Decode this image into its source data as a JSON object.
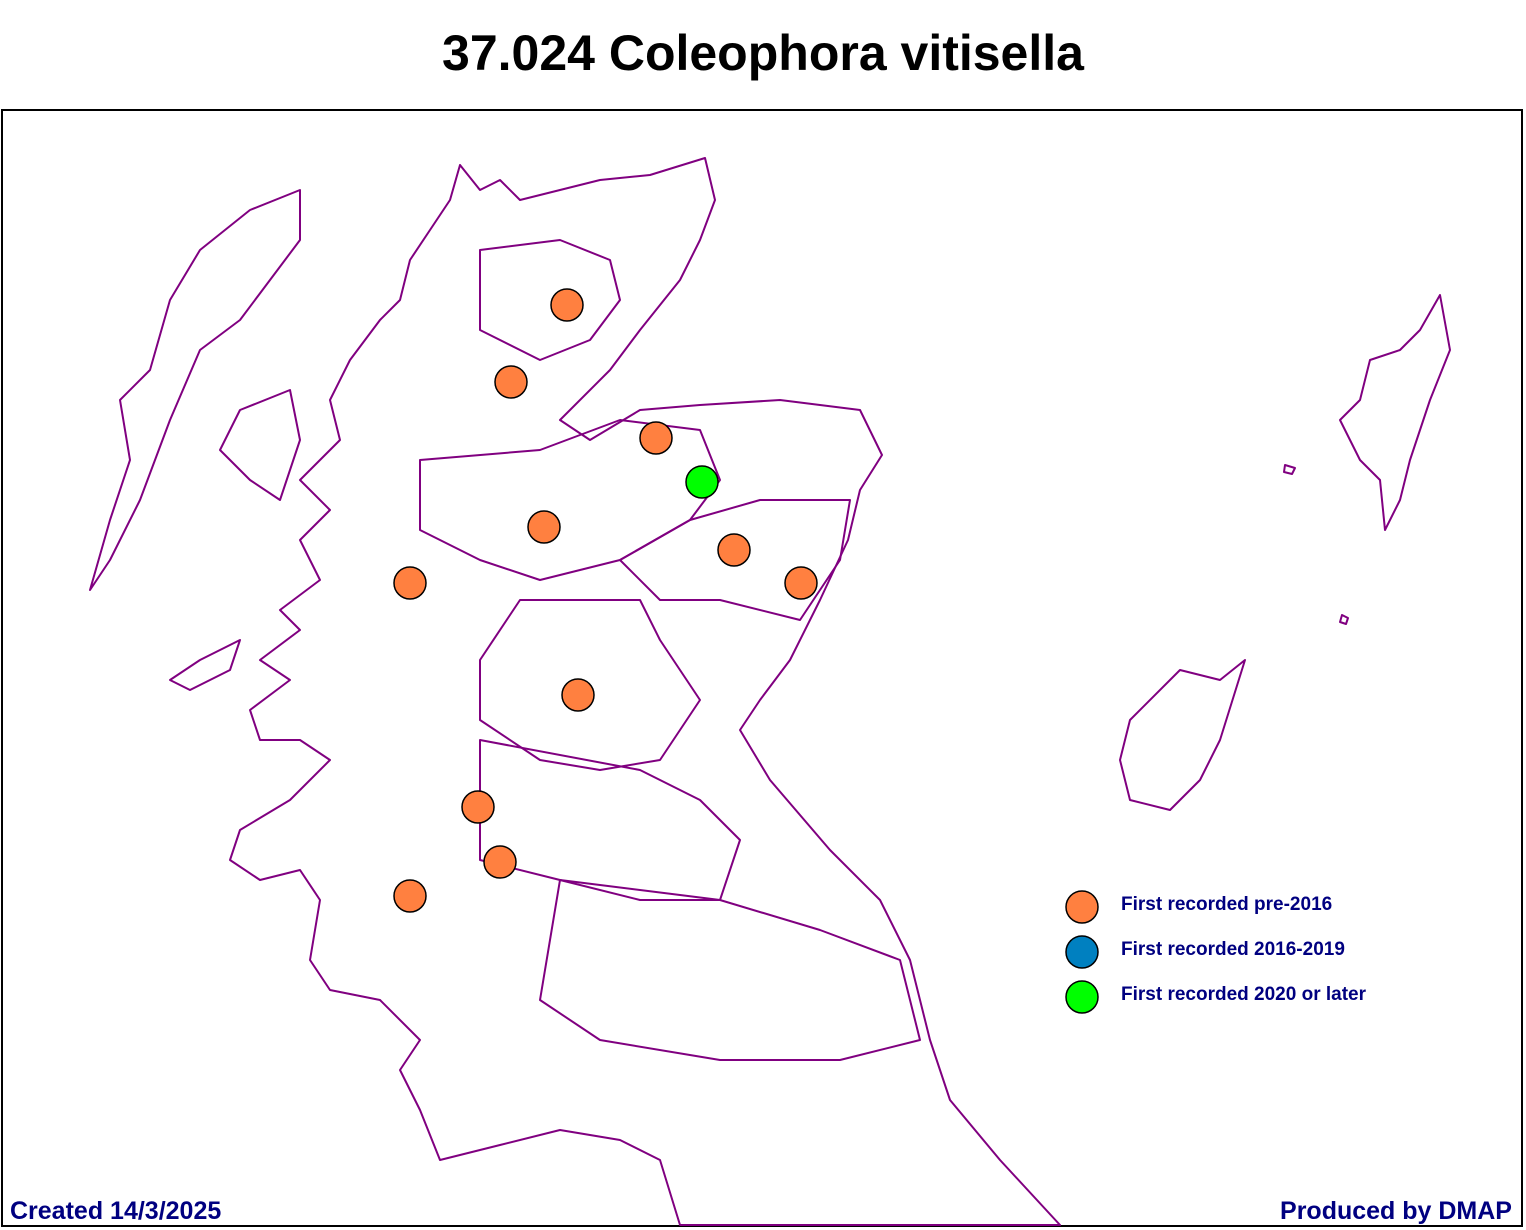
{
  "title": "37.024 Coleophora vitisella",
  "legend": [
    {
      "label": "First recorded pre-2016",
      "color": "#ff8040"
    },
    {
      "label": "First recorded 2016-2019",
      "color": "#0080c0"
    },
    {
      "label": "First recorded 2020 or later",
      "color": "#00ff00"
    }
  ],
  "footer": {
    "created": "Created 14/3/2025",
    "producer": "Produced by DMAP"
  }
}
